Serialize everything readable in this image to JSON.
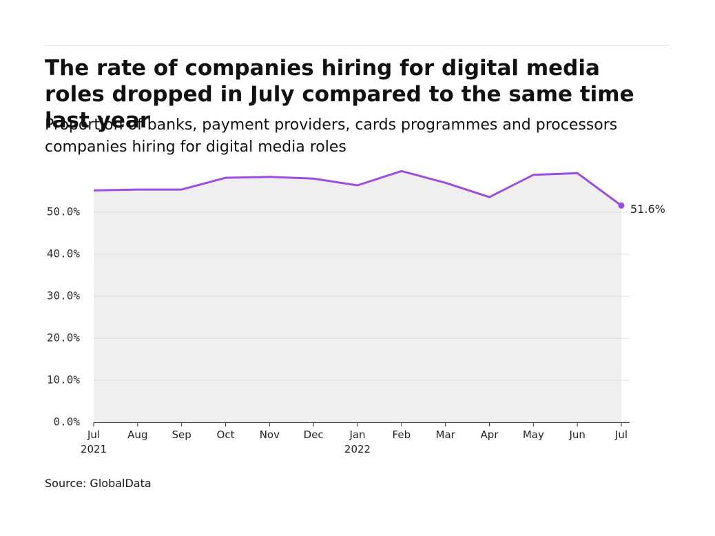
{
  "chart_data": {
    "type": "line",
    "title": "The rate of companies hiring for digital media roles dropped in July compared to the same time last year",
    "subtitle": "Proportion of banks, payment providers, cards programmes and processors companies hiring for digital media roles",
    "source": "Source: GlobalData",
    "categories": [
      "Jul\n2021",
      "Aug",
      "Sep",
      "Oct",
      "Nov",
      "Dec",
      "Jan\n2022",
      "Feb",
      "Mar",
      "Apr",
      "May",
      "Jun",
      "Jul"
    ],
    "series": [
      {
        "name": "Companies hiring",
        "color": "#9b4de0",
        "values": [
          55.2,
          55.4,
          55.4,
          58.2,
          58.4,
          58.0,
          56.4,
          59.8,
          57.0,
          53.6,
          58.9,
          59.3,
          51.6
        ],
        "value_labels": [
          null,
          null,
          null,
          null,
          null,
          null,
          null,
          null,
          null,
          null,
          null,
          null,
          "51.6%"
        ]
      }
    ],
    "ylim": [
      0,
      60.5
    ],
    "yticks": [
      {
        "value": 0,
        "label": "0.0%"
      },
      {
        "value": 10,
        "label": "10.0%"
      },
      {
        "value": 20,
        "label": "20.0%"
      },
      {
        "value": 30,
        "label": "30.0%"
      },
      {
        "value": 40,
        "label": "40.0%"
      },
      {
        "value": 50,
        "label": "50.0%"
      }
    ],
    "grid": true
  }
}
